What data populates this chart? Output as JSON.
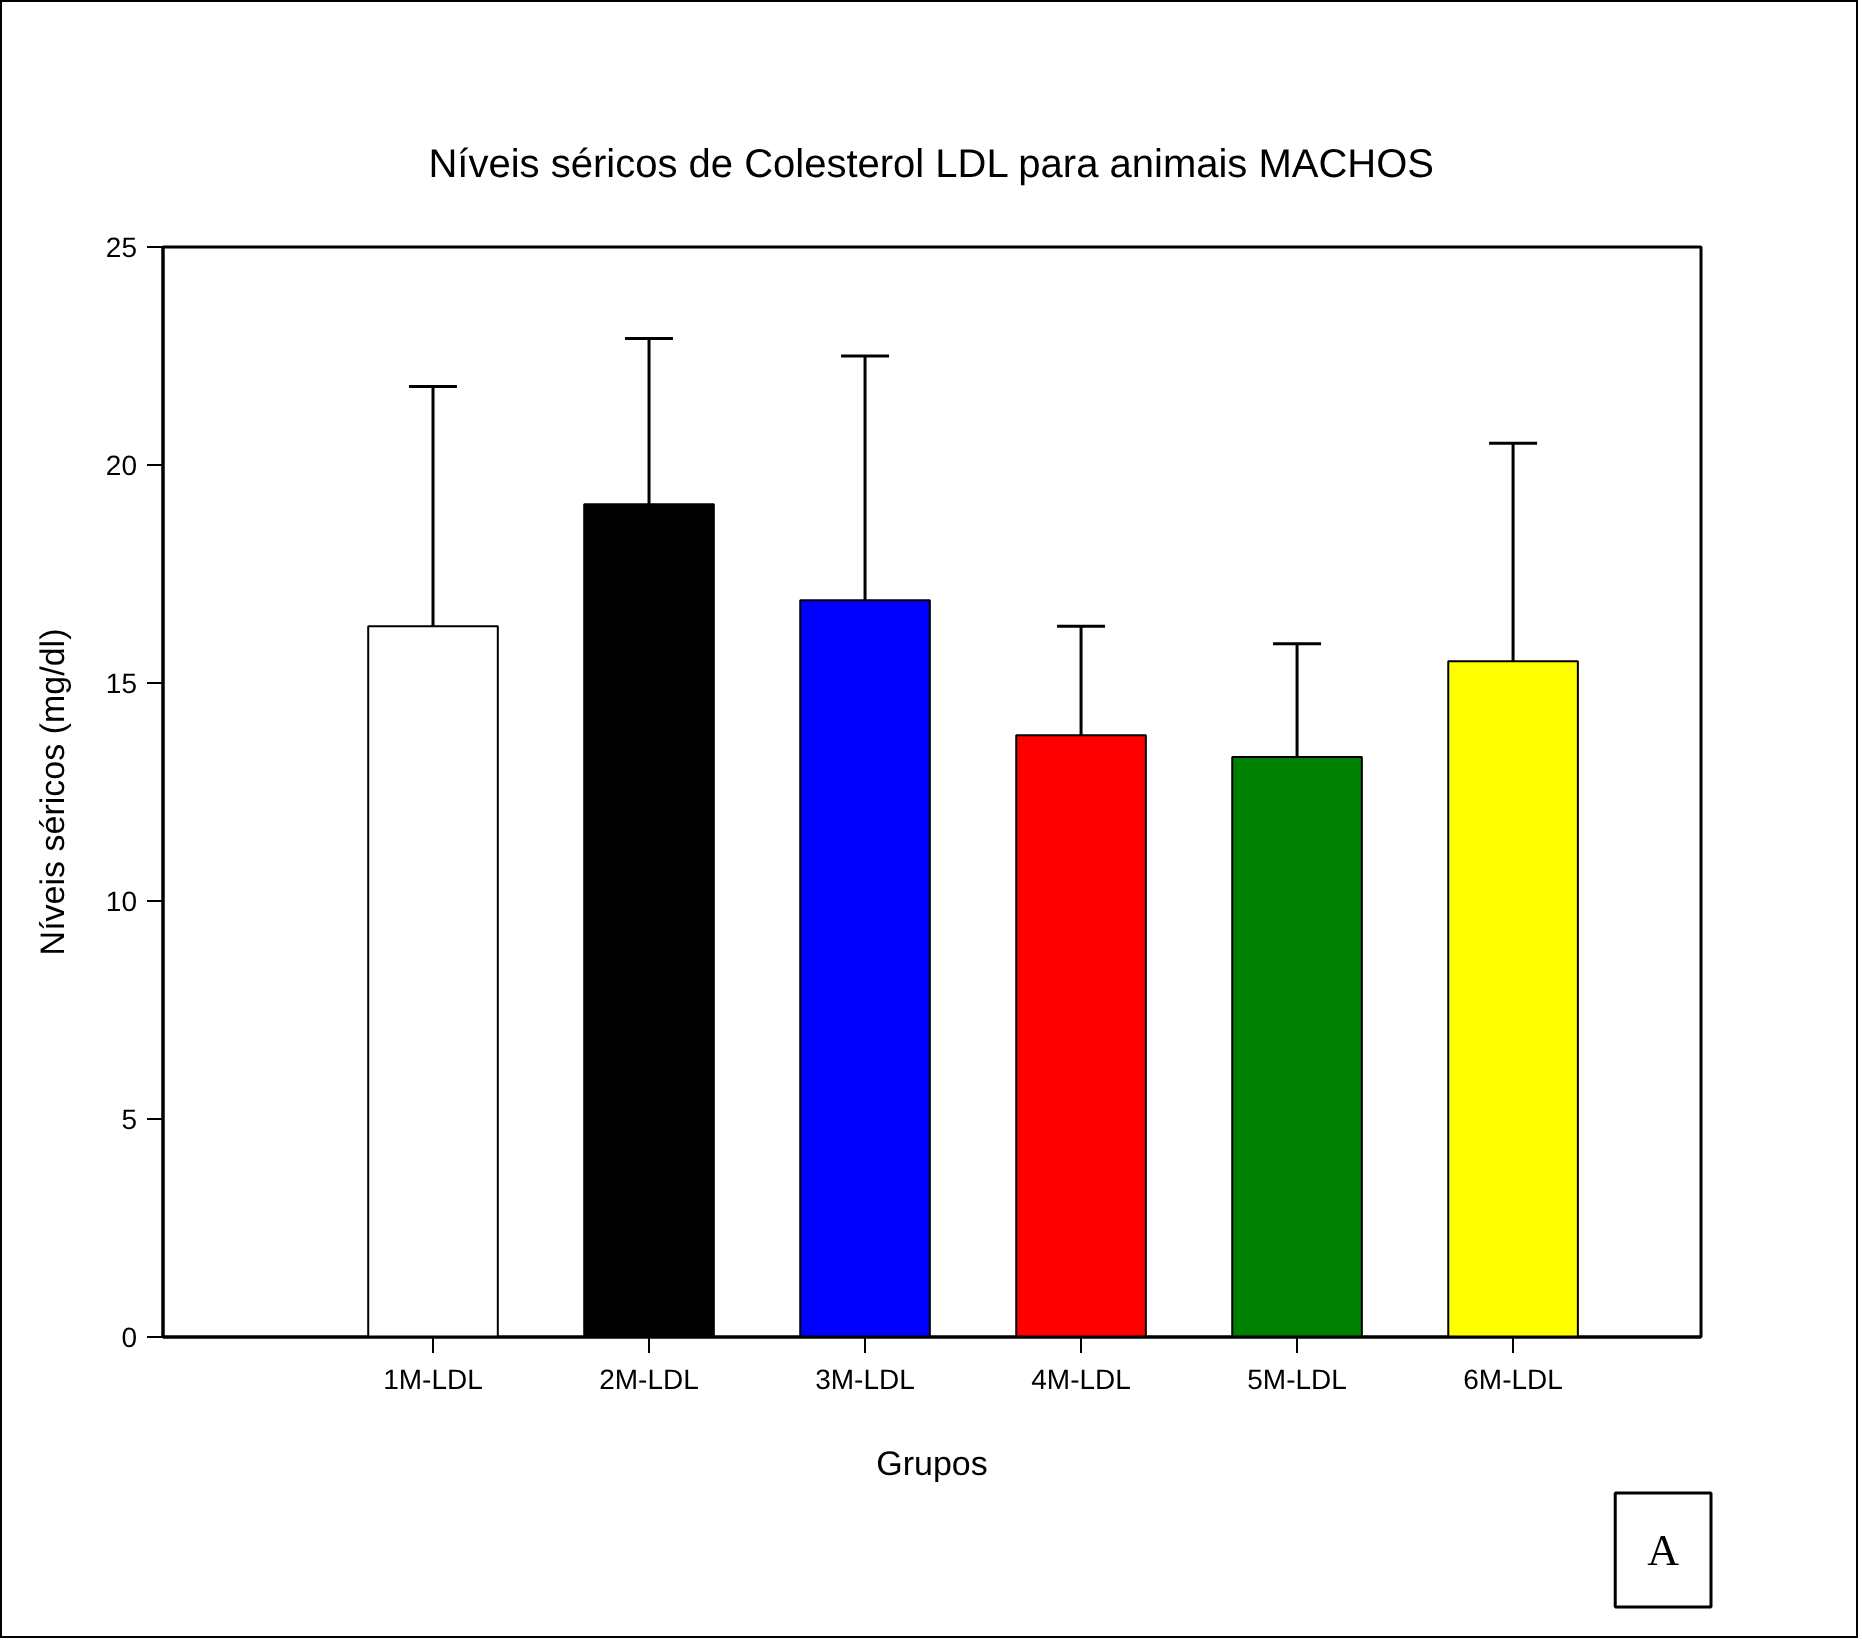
{
  "chart_data": {
    "type": "bar",
    "title": "Níveis séricos de Colesterol LDL para animais MACHOS",
    "xlabel": "Grupos",
    "ylabel": "Níveis séricos (mg/dl)",
    "categories": [
      "1M-LDL",
      "2M-LDL",
      "3M-LDL",
      "4M-LDL",
      "5M-LDL",
      "6M-LDL"
    ],
    "values": [
      16.3,
      19.1,
      16.9,
      13.8,
      13.3,
      15.5
    ],
    "colors": [
      "#ffffff",
      "#000000",
      "#0000ff",
      "#ff0000",
      "#008000",
      "#ffff00"
    ],
    "errors": [
      [
        16.3,
        21.8
      ],
      [
        19.1,
        22.9
      ],
      [
        16.9,
        22.5
      ],
      [
        13.8,
        16.3
      ],
      [
        13.3,
        15.9
      ],
      [
        15.5,
        20.5
      ]
    ],
    "ylim": [
      0,
      25
    ],
    "yticks": [
      0,
      5,
      10,
      15,
      20,
      25
    ],
    "grid": false,
    "annotations": [
      "A"
    ]
  }
}
